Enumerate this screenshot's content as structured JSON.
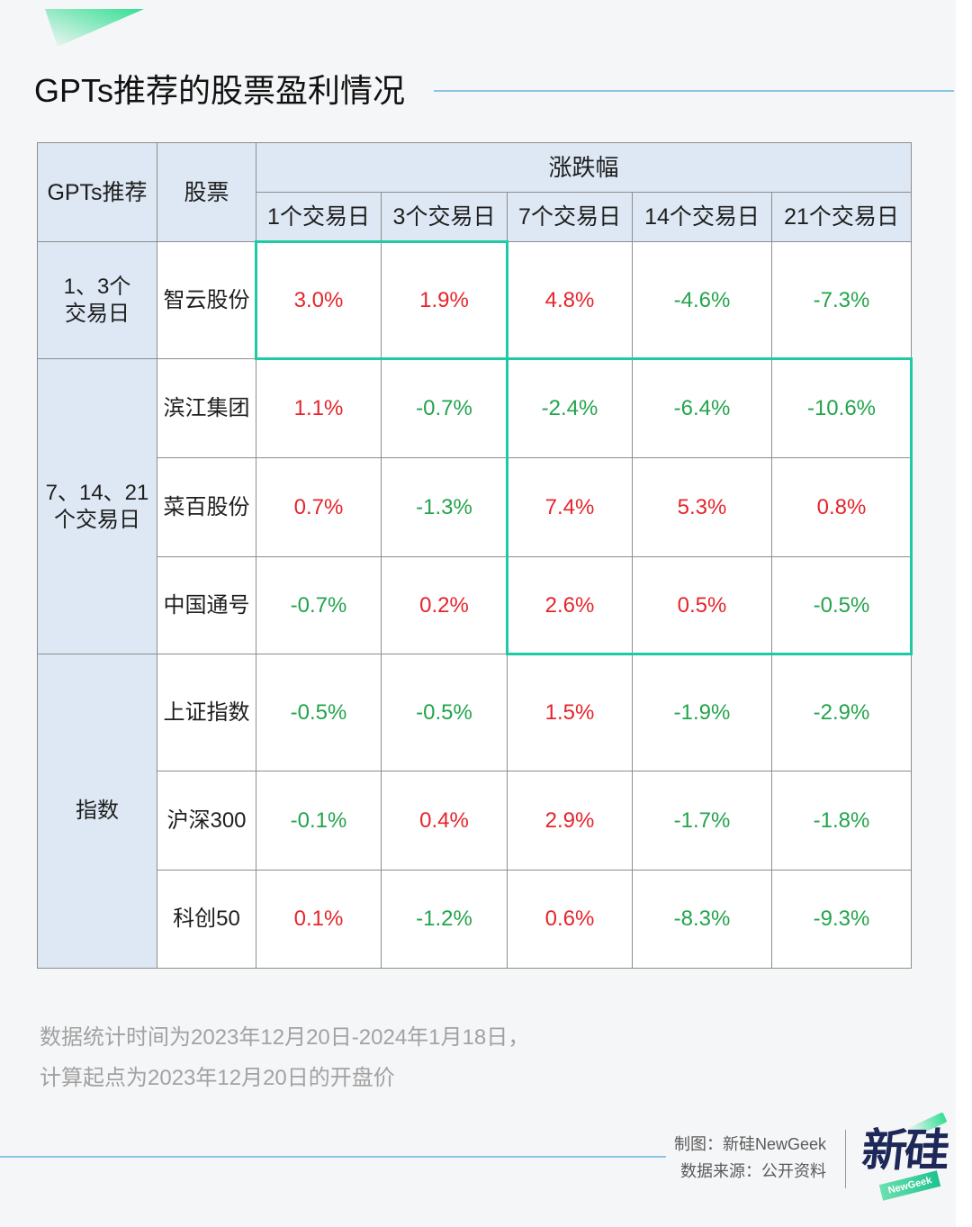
{
  "colors": {
    "up": "#e5252b",
    "down": "#23a44c",
    "highlight": "#1ecaa3",
    "header_bg": "#dde8f4",
    "grid_line": "#8d8d8d",
    "rule": "#8cc4e4",
    "logo_text": "#1d2758",
    "accent_green": "#34de93"
  },
  "chart_data": {
    "type": "table",
    "title": "GPTs推荐的股票盈利情况",
    "header": {
      "recommend": "GPTs推荐",
      "stock": "股票",
      "change": "涨跌幅",
      "periods": [
        "1个交易日",
        "3个交易日",
        "7个交易日",
        "14个交易日",
        "21个交易日"
      ]
    },
    "groups": [
      {
        "label_lines": [
          "1、3个",
          "交易日"
        ],
        "rows": [
          {
            "stock": "智云股份",
            "values": [
              "3.0%",
              "1.9%",
              "4.8%",
              "-4.6%",
              "-7.3%"
            ]
          }
        ]
      },
      {
        "label_lines": [
          "7、14、21",
          "个交易日"
        ],
        "rows": [
          {
            "stock": "滨江集团",
            "values": [
              "1.1%",
              "-0.7%",
              "-2.4%",
              "-6.4%",
              "-10.6%"
            ]
          },
          {
            "stock": "菜百股份",
            "values": [
              "0.7%",
              "-1.3%",
              "7.4%",
              "5.3%",
              "0.8%"
            ]
          },
          {
            "stock": "中国通号",
            "values": [
              "-0.7%",
              "0.2%",
              "2.6%",
              "0.5%",
              "-0.5%"
            ]
          }
        ]
      },
      {
        "label_lines": [
          "指数"
        ],
        "rows": [
          {
            "stock": "上证指数",
            "values": [
              "-0.5%",
              "-0.5%",
              "1.5%",
              "-1.9%",
              "-2.9%"
            ]
          },
          {
            "stock": "沪深300",
            "values": [
              "-0.1%",
              "0.4%",
              "2.9%",
              "-1.7%",
              "-1.8%"
            ]
          },
          {
            "stock": "科创50",
            "values": [
              "0.1%",
              "-1.2%",
              "0.6%",
              "-8.3%",
              "-9.3%"
            ]
          }
        ]
      }
    ],
    "highlights": [
      {
        "rows": [
          0
        ],
        "periods": [
          0,
          1
        ]
      },
      {
        "rows": [
          1,
          2,
          3
        ],
        "periods": [
          2,
          3,
          4
        ]
      }
    ]
  },
  "notes": [
    "数据统计时间为2023年12月20日-2024年1月18日，",
    "计算起点为2023年12月20日的开盘价"
  ],
  "credits": {
    "made_by": "制图：新硅NewGeek",
    "source": "数据来源：公开资料"
  },
  "logo": {
    "main": "新硅",
    "sub": "NewGeek"
  }
}
